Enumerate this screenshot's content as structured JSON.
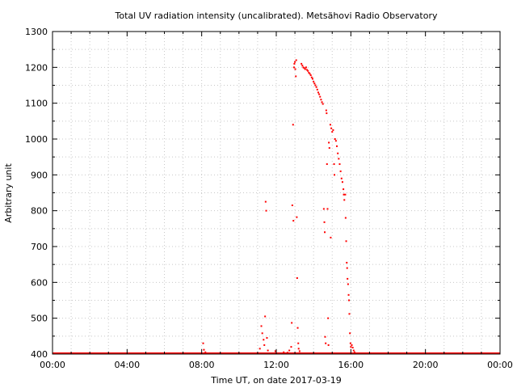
{
  "chart_data": {
    "type": "scatter",
    "title": "Total UV radiation intensity (uncalibrated). Metsähovi Radio Observatory",
    "xlabel": "Time UT, on date 2017-03-19",
    "ylabel": "Arbitrary unit",
    "x_unit": "hours UT",
    "xlim": [
      0,
      24
    ],
    "ylim": [
      400,
      1300
    ],
    "x_ticks": [
      {
        "value": 0,
        "label": "00:00"
      },
      {
        "value": 4,
        "label": "04:00"
      },
      {
        "value": 8,
        "label": "08:00"
      },
      {
        "value": 12,
        "label": "12:00"
      },
      {
        "value": 16,
        "label": "16:00"
      },
      {
        "value": 20,
        "label": "20:00"
      },
      {
        "value": 24,
        "label": "00:00"
      }
    ],
    "y_ticks": [
      400,
      500,
      600,
      700,
      800,
      900,
      1000,
      1100,
      1200,
      1300
    ],
    "grid": true,
    "point_color": "#ff0000",
    "series": [
      {
        "baseline": {
          "x_range": [
            0,
            24
          ],
          "y": 400
        },
        "points": [
          [
            8.08,
            430
          ],
          [
            8.12,
            412
          ],
          [
            8.2,
            405
          ],
          [
            11.12,
            415
          ],
          [
            11.2,
            478
          ],
          [
            11.25,
            458
          ],
          [
            11.32,
            440
          ],
          [
            11.36,
            425
          ],
          [
            11.4,
            505
          ],
          [
            11.43,
            825
          ],
          [
            11.46,
            800
          ],
          [
            11.5,
            445
          ],
          [
            11.55,
            410
          ],
          [
            11.95,
            408
          ],
          [
            12.4,
            405
          ],
          [
            12.6,
            404
          ],
          [
            12.7,
            410
          ],
          [
            12.8,
            420
          ],
          [
            12.83,
            487
          ],
          [
            12.86,
            815
          ],
          [
            12.9,
            1040
          ],
          [
            12.92,
            772
          ],
          [
            12.95,
            1200
          ],
          [
            12.97,
            1210
          ],
          [
            13.0,
            1215
          ],
          [
            13.02,
            1195
          ],
          [
            13.05,
            1175
          ],
          [
            13.07,
            1220
          ],
          [
            13.1,
            782
          ],
          [
            13.12,
            612
          ],
          [
            13.15,
            473
          ],
          [
            13.18,
            430
          ],
          [
            13.2,
            415
          ],
          [
            13.25,
            408
          ],
          [
            13.3,
            402
          ],
          [
            13.35,
            1210
          ],
          [
            13.4,
            1205
          ],
          [
            13.45,
            1200
          ],
          [
            13.5,
            1198
          ],
          [
            13.55,
            1195
          ],
          [
            13.6,
            1200
          ],
          [
            13.65,
            1193
          ],
          [
            13.7,
            1190
          ],
          [
            13.75,
            1185
          ],
          [
            13.8,
            1182
          ],
          [
            13.85,
            1178
          ],
          [
            13.9,
            1172
          ],
          [
            13.95,
            1168
          ],
          [
            14.0,
            1160
          ],
          [
            14.05,
            1155
          ],
          [
            14.1,
            1150
          ],
          [
            14.15,
            1145
          ],
          [
            14.2,
            1138
          ],
          [
            14.25,
            1130
          ],
          [
            14.3,
            1125
          ],
          [
            14.35,
            1118
          ],
          [
            14.4,
            1110
          ],
          [
            14.45,
            1103
          ],
          [
            14.5,
            1098
          ],
          [
            14.55,
            805
          ],
          [
            14.58,
            768
          ],
          [
            14.6,
            740
          ],
          [
            14.62,
            448
          ],
          [
            14.65,
            430
          ],
          [
            14.68,
            1080
          ],
          [
            14.7,
            1072
          ],
          [
            14.72,
            930
          ],
          [
            14.75,
            805
          ],
          [
            14.78,
            500
          ],
          [
            14.8,
            425
          ],
          [
            14.82,
            990
          ],
          [
            14.85,
            975
          ],
          [
            14.9,
            1040
          ],
          [
            14.92,
            725
          ],
          [
            14.95,
            1030
          ],
          [
            15.0,
            1020
          ],
          [
            15.05,
            1025
          ],
          [
            15.1,
            930
          ],
          [
            15.12,
            900
          ],
          [
            15.15,
            1000
          ],
          [
            15.2,
            995
          ],
          [
            15.25,
            980
          ],
          [
            15.3,
            960
          ],
          [
            15.35,
            945
          ],
          [
            15.4,
            930
          ],
          [
            15.45,
            910
          ],
          [
            15.5,
            890
          ],
          [
            15.55,
            880
          ],
          [
            15.6,
            860
          ],
          [
            15.62,
            845
          ],
          [
            15.65,
            830
          ],
          [
            15.7,
            845
          ],
          [
            15.72,
            780
          ],
          [
            15.75,
            715
          ],
          [
            15.78,
            655
          ],
          [
            15.8,
            640
          ],
          [
            15.82,
            610
          ],
          [
            15.85,
            595
          ],
          [
            15.88,
            565
          ],
          [
            15.9,
            550
          ],
          [
            15.92,
            512
          ],
          [
            15.95,
            458
          ],
          [
            15.98,
            430
          ],
          [
            16.0,
            420
          ],
          [
            16.05,
            425
          ],
          [
            16.1,
            418
          ],
          [
            16.15,
            410
          ],
          [
            16.2,
            405
          ]
        ]
      }
    ]
  }
}
